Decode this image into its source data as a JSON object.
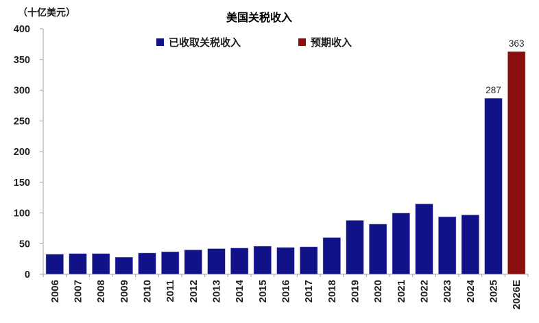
{
  "header": {
    "title": "美国关税收入",
    "unit_label": "（十亿美元）"
  },
  "colors": {
    "collected_bar": "#111287",
    "expected_bar": "#8b0f0f",
    "axis": "#b0b0b3",
    "tick_text": "#1f1f1f",
    "annotation_text": "#262626"
  },
  "chart_data": {
    "type": "bar",
    "title": "美国关税收入",
    "unit_label": "（十亿美元）",
    "categories": [
      "2006",
      "2007",
      "2008",
      "2009",
      "2010",
      "2011",
      "2012",
      "2013",
      "2014",
      "2015",
      "2016",
      "2017",
      "2018",
      "2019",
      "2020",
      "2021",
      "2022",
      "2023",
      "2024",
      "2025",
      "2026E"
    ],
    "series": [
      {
        "name": "已收取关税收入",
        "color": "#111287",
        "values": [
          33,
          34,
          34,
          28,
          35,
          37,
          40,
          42,
          43,
          46,
          44,
          45,
          60,
          88,
          82,
          100,
          115,
          94,
          97,
          287,
          null
        ]
      },
      {
        "name": "预期收入",
        "color": "#8b0f0f",
        "values": [
          null,
          null,
          null,
          null,
          null,
          null,
          null,
          null,
          null,
          null,
          null,
          null,
          null,
          null,
          null,
          null,
          null,
          null,
          null,
          null,
          363
        ]
      }
    ],
    "data_labels": [
      {
        "category": "2025",
        "text": "287"
      },
      {
        "category": "2026E",
        "text": "363"
      }
    ],
    "ylim": [
      0,
      400
    ],
    "yticks": [
      0,
      50,
      100,
      150,
      200,
      250,
      300,
      350,
      400
    ],
    "grid": false,
    "legend_position": "top-center",
    "x_label_rotation": -90
  }
}
